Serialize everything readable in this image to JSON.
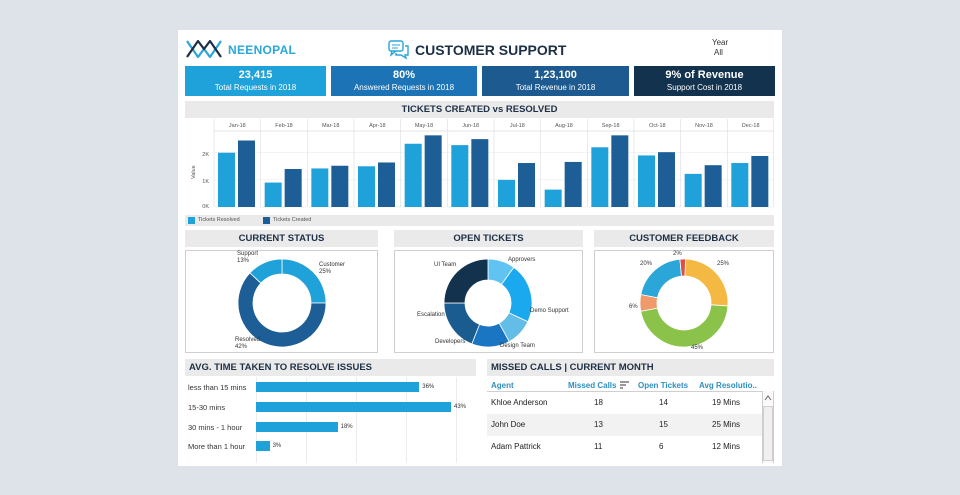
{
  "header": {
    "brand": "NEENOPAL",
    "title": "CUSTOMER SUPPORT",
    "year_filter": {
      "label": "Year",
      "value": "All"
    }
  },
  "kpis": [
    {
      "value": "23,415",
      "label": "Total Requests in 2018",
      "color": "#1fa1d9"
    },
    {
      "value": "80%",
      "label": "Answered Requests in 2018",
      "color": "#1c73b5"
    },
    {
      "value": "1,23,100",
      "label": "Total Revenue in 2018",
      "color": "#1d5a8f"
    },
    {
      "value": "9% of Revenue",
      "label": "Support Cost in 2018",
      "color": "#13324d"
    }
  ],
  "tickets_chart": {
    "title": "TICKETS CREATED vs RESOLVED",
    "ylabel": "Value",
    "y_ticks": [
      "2K",
      "1K",
      "0K"
    ],
    "legend": [
      "Tickets Resolved",
      "Tickets Created"
    ],
    "colors": [
      "#1fa1d9",
      "#1c5e95"
    ]
  },
  "chart_data": {
    "type": "bar",
    "categories": [
      "Jan-18",
      "Feb-18",
      "Mar-18",
      "Apr-18",
      "May-18",
      "Jun-18",
      "Jul-18",
      "Aug-18",
      "Sep-18",
      "Oct-18",
      "Nov-18",
      "Dec-18"
    ],
    "series": [
      {
        "name": "Tickets Resolved",
        "values": [
          2000,
          900,
          1420,
          1500,
          2330,
          2280,
          1000,
          640,
          2200,
          1900,
          1220,
          1620
        ]
      },
      {
        "name": "Tickets Created",
        "values": [
          2450,
          1400,
          1520,
          1640,
          2640,
          2500,
          1620,
          1660,
          2640,
          2020,
          1540,
          1880
        ]
      }
    ],
    "title": "TICKETS CREATED vs RESOLVED",
    "xlabel": "",
    "ylabel": "Value",
    "ylim": [
      0,
      2800
    ],
    "grid": true,
    "legend_position": "bottom-left"
  },
  "current_status": {
    "title": "CURRENT STATUS",
    "segments": [
      {
        "label": "Customer",
        "pct": "25%",
        "value": 25,
        "color": "#1fa1d9"
      },
      {
        "label": "Resolved",
        "pct": "42%",
        "value": 42,
        "color": "#1c5e95"
      },
      {
        "label": "Support",
        "pct": "13%",
        "value": 13,
        "color": "#1fa1d9"
      }
    ]
  },
  "open_tickets": {
    "title": "OPEN TICKETS",
    "segments": [
      {
        "label": "Approvers",
        "value": 10,
        "color": "#5fc4f2"
      },
      {
        "label": "Demo Support",
        "value": 22,
        "color": "#1aa8ef"
      },
      {
        "label": "Design Team",
        "value": 10,
        "color": "#64bde6"
      },
      {
        "label": "Developers",
        "value": 14,
        "color": "#1a75c2"
      },
      {
        "label": "Escalation",
        "value": 19,
        "color": "#1a5c8f"
      },
      {
        "label": "UI Team",
        "value": 25,
        "color": "#13324d"
      }
    ]
  },
  "customer_feedback": {
    "title": "CUSTOMER FEEDBACK",
    "segments": [
      {
        "label": "25%",
        "value": 25,
        "color": "#f4b942"
      },
      {
        "label": "45%",
        "value": 45,
        "color": "#8bc34a"
      },
      {
        "label": "6%",
        "value": 6,
        "color": "#f09a6b"
      },
      {
        "label": "20%",
        "value": 20,
        "color": "#2aa6d8"
      },
      {
        "label": "2%",
        "value": 2,
        "color": "#e04e46"
      }
    ]
  },
  "resolve_time": {
    "title": "AVG. TIME TAKEN TO RESOLVE ISSUES",
    "rows": [
      {
        "label": "less than 15 mins",
        "value": 36,
        "pct": "36%"
      },
      {
        "label": "15-30 mins",
        "value": 43,
        "pct": "43%"
      },
      {
        "label": "30 mins - 1 hour",
        "value": 18,
        "pct": "18%"
      },
      {
        "label": "More than 1 hour",
        "value": 3,
        "pct": "3%"
      }
    ]
  },
  "missed_calls": {
    "title": "MISSED CALLS | CURRENT MONTH",
    "columns": [
      "Agent",
      "Missed Calls",
      "Open Tickets",
      "Avg Resolutio.."
    ],
    "rows": [
      {
        "agent": "Khloe Anderson",
        "missed": "18",
        "open": "14",
        "avg": "19  Mins"
      },
      {
        "agent": "John Doe",
        "missed": "13",
        "open": "15",
        "avg": "25  Mins"
      },
      {
        "agent": "Adam Pattrick",
        "missed": "11",
        "open": "6",
        "avg": "12  Mins"
      }
    ]
  }
}
